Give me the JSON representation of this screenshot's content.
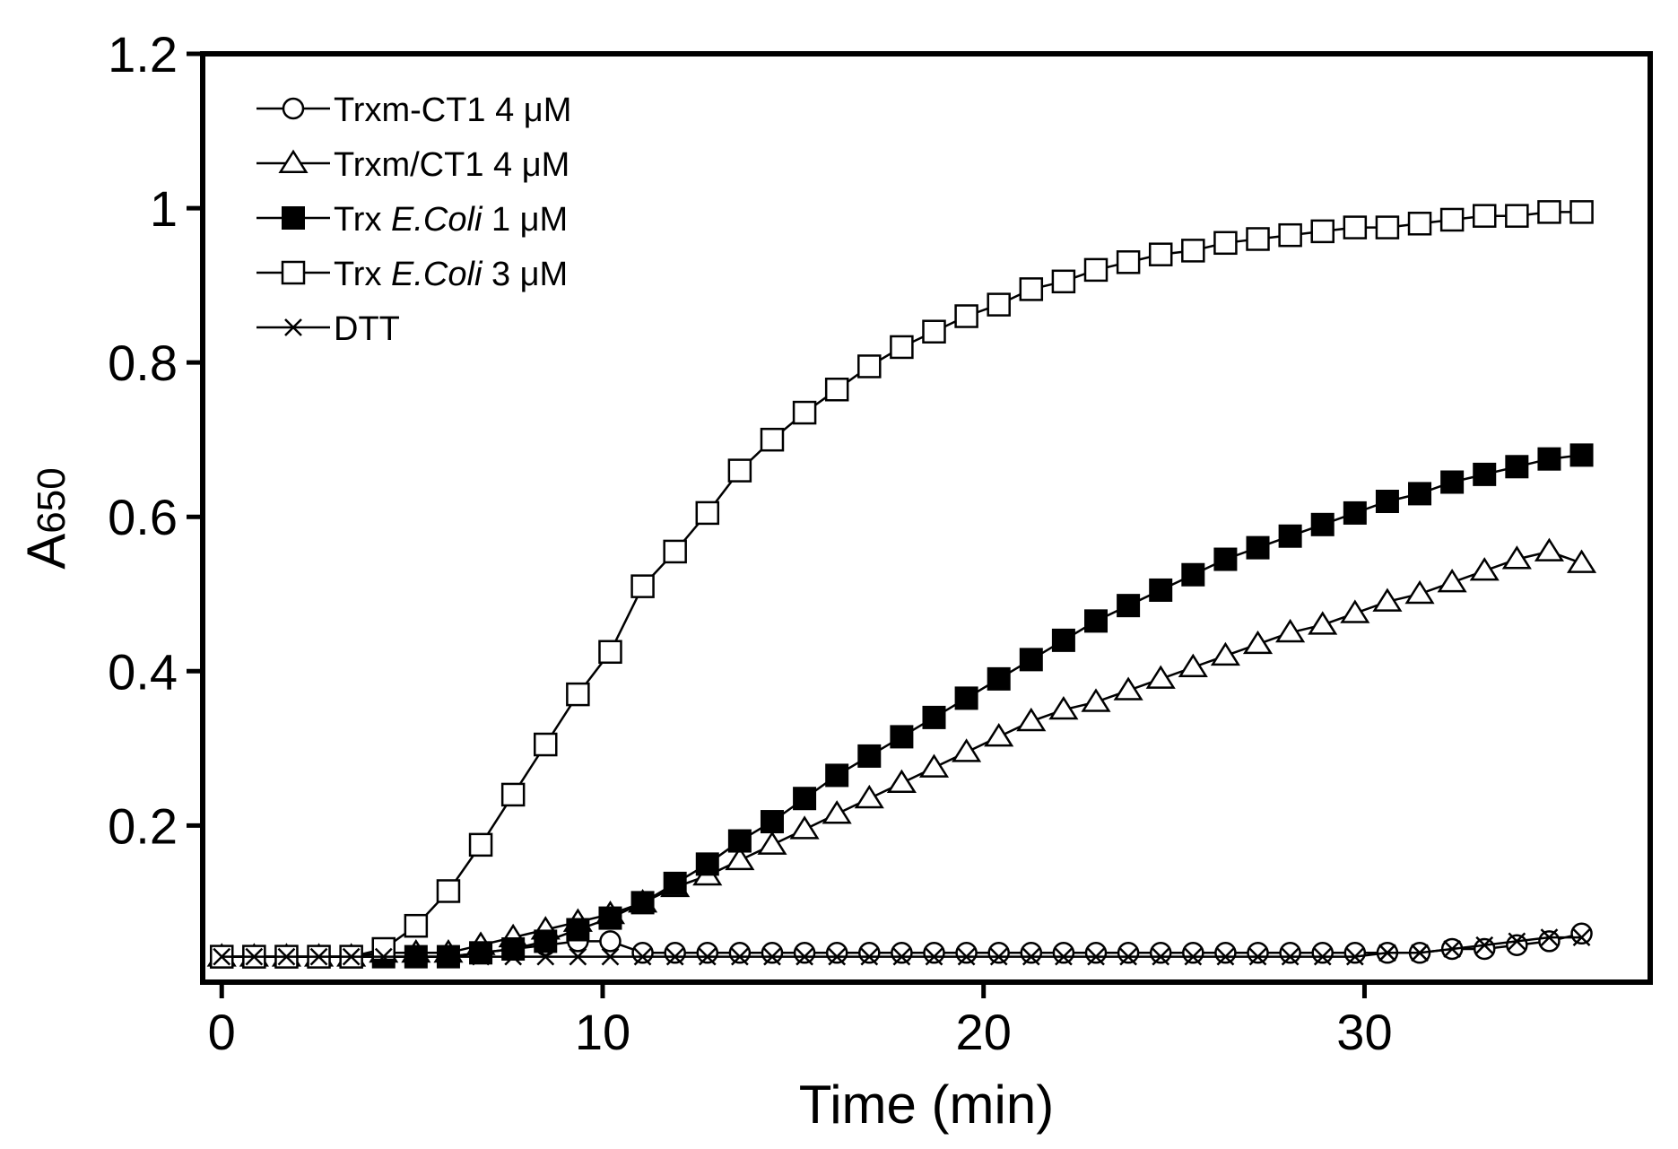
{
  "chart_data": {
    "type": "line",
    "title": "",
    "xlabel": "Time (min)",
    "ylabel": {
      "main": "A",
      "sub": "650"
    },
    "xlim": [
      -0.5,
      37.5
    ],
    "ylim": [
      -0.003,
      1.2
    ],
    "xticks": [
      0,
      10,
      20,
      30
    ],
    "xtick_labels": [
      "0",
      "10",
      "20",
      "30"
    ],
    "yticks": [
      0.2,
      0.4,
      0.6,
      0.8,
      1.0,
      1.2
    ],
    "ytick_labels": [
      "0.2",
      "0.4",
      "0.6",
      "0.8",
      "1",
      "1.2"
    ],
    "grid": false,
    "legend_position": "top-left",
    "x": [
      0,
      0.85,
      1.7,
      2.55,
      3.4,
      4.25,
      5.1,
      5.95,
      6.8,
      7.65,
      8.5,
      9.35,
      10.2,
      11.05,
      11.9,
      12.75,
      13.6,
      14.45,
      15.3,
      16.15,
      17.0,
      17.85,
      18.7,
      19.55,
      20.4,
      21.25,
      22.1,
      22.95,
      23.8,
      24.65,
      25.5,
      26.35,
      27.2,
      28.05,
      28.9,
      29.75,
      30.6,
      31.45,
      32.3,
      33.15,
      34.0,
      34.85,
      35.7
    ],
    "series": [
      {
        "name": "Trxm-CT1 4 μM",
        "legend_parts": [
          {
            "text": "Trxm-CT1 4 μM",
            "italic": false
          }
        ],
        "marker": "circle-open",
        "values": [
          0.03,
          0.03,
          0.03,
          0.03,
          0.03,
          0.03,
          0.03,
          0.03,
          0.035,
          0.04,
          0.045,
          0.05,
          0.05,
          0.035,
          0.035,
          0.035,
          0.035,
          0.035,
          0.035,
          0.035,
          0.035,
          0.035,
          0.035,
          0.035,
          0.035,
          0.035,
          0.035,
          0.035,
          0.035,
          0.035,
          0.035,
          0.035,
          0.035,
          0.035,
          0.035,
          0.035,
          0.035,
          0.035,
          0.04,
          0.04,
          0.045,
          0.05,
          0.06
        ]
      },
      {
        "name": "Trxm/CT1 4 μM",
        "legend_parts": [
          {
            "text": "Trxm/CT1 4 μM",
            "italic": false
          }
        ],
        "marker": "triangle-open",
        "values": [
          0.03,
          0.03,
          0.03,
          0.03,
          0.03,
          0.035,
          0.035,
          0.035,
          0.045,
          0.055,
          0.065,
          0.075,
          0.085,
          0.1,
          0.12,
          0.135,
          0.155,
          0.175,
          0.195,
          0.215,
          0.235,
          0.255,
          0.275,
          0.295,
          0.315,
          0.335,
          0.35,
          0.36,
          0.375,
          0.39,
          0.405,
          0.42,
          0.435,
          0.45,
          0.46,
          0.475,
          0.49,
          0.5,
          0.515,
          0.53,
          0.545,
          0.555,
          0.54
        ]
      },
      {
        "name": "Trx E.Coli 1 μM",
        "legend_parts": [
          {
            "text": "Trx ",
            "italic": false
          },
          {
            "text": "E.Coli",
            "italic": true
          },
          {
            "text": " 1 μM",
            "italic": false
          }
        ],
        "marker": "square-filled",
        "values": [
          0.03,
          0.03,
          0.03,
          0.03,
          0.03,
          0.03,
          0.03,
          0.03,
          0.035,
          0.04,
          0.05,
          0.065,
          0.08,
          0.1,
          0.125,
          0.15,
          0.18,
          0.205,
          0.235,
          0.265,
          0.29,
          0.315,
          0.34,
          0.365,
          0.39,
          0.415,
          0.44,
          0.465,
          0.485,
          0.505,
          0.525,
          0.545,
          0.56,
          0.575,
          0.59,
          0.605,
          0.62,
          0.63,
          0.645,
          0.655,
          0.665,
          0.675,
          0.68
        ]
      },
      {
        "name": "Trx E.Coli 3 μM",
        "legend_parts": [
          {
            "text": "Trx ",
            "italic": false
          },
          {
            "text": "E.Coli",
            "italic": true
          },
          {
            "text": " 3 μM",
            "italic": false
          }
        ],
        "marker": "square-open",
        "values": [
          0.03,
          0.03,
          0.03,
          0.03,
          0.03,
          0.04,
          0.07,
          0.115,
          0.175,
          0.24,
          0.305,
          0.37,
          0.425,
          0.51,
          0.555,
          0.605,
          0.66,
          0.7,
          0.735,
          0.765,
          0.795,
          0.82,
          0.84,
          0.86,
          0.875,
          0.895,
          0.905,
          0.92,
          0.93,
          0.94,
          0.945,
          0.955,
          0.96,
          0.965,
          0.97,
          0.975,
          0.975,
          0.98,
          0.985,
          0.99,
          0.99,
          0.995,
          0.995
        ]
      },
      {
        "name": "DTT",
        "legend_parts": [
          {
            "text": "DTT",
            "italic": false
          }
        ],
        "marker": "cross",
        "values": [
          0.03,
          0.03,
          0.03,
          0.03,
          0.03,
          0.03,
          0.03,
          0.03,
          0.03,
          0.03,
          0.03,
          0.03,
          0.03,
          0.03,
          0.03,
          0.03,
          0.03,
          0.03,
          0.03,
          0.03,
          0.03,
          0.03,
          0.03,
          0.03,
          0.03,
          0.03,
          0.03,
          0.03,
          0.03,
          0.03,
          0.03,
          0.03,
          0.03,
          0.03,
          0.03,
          0.03,
          0.035,
          0.035,
          0.04,
          0.045,
          0.05,
          0.055,
          0.055
        ]
      }
    ]
  }
}
